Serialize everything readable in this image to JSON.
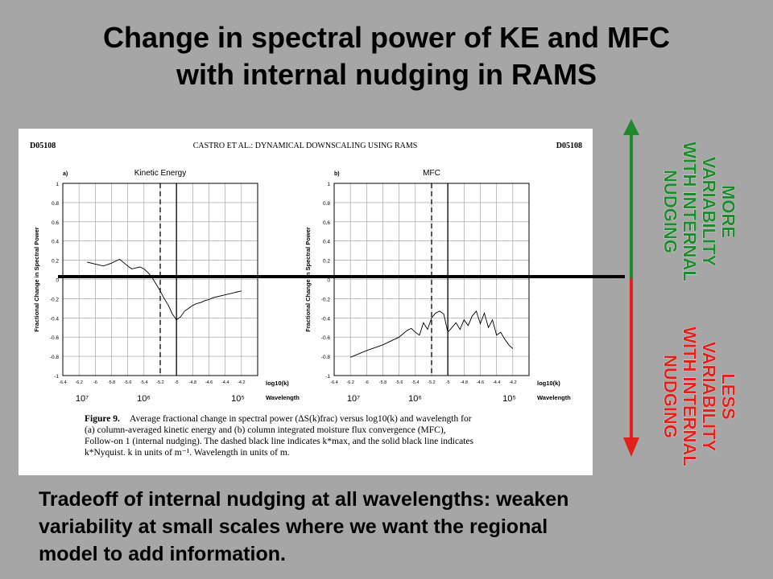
{
  "slide": {
    "title_line1": "Change in spectral power of KE and MFC",
    "title_line2": "with internal nudging in RAMS",
    "bottom_line1": "Tradeoff of internal nudging at all wavelengths:  weaken",
    "bottom_line2": "variability at small scales where we want the regional",
    "bottom_line3": "model to add information.",
    "more_line1": "MORE",
    "more_line2": "VARIABILITY",
    "more_line3": "WITH INTERNAL",
    "more_line4": "NUDGING",
    "less_line1": "LESS",
    "less_line2": "VARIABILITY",
    "less_line3": "WITH INTERNAL",
    "less_line4": "NUDGING",
    "colors": {
      "background": "#a6a6a6",
      "more": "#1e8a2d",
      "less": "#e0201b"
    }
  },
  "figure": {
    "header_left": "D05108",
    "header_center": "CASTRO ET AL.: DYNAMICAL DOWNSCALING USING RAMS",
    "header_right": "D05108",
    "caption_bold": "Figure 9.",
    "caption_line1": "Average fractional change in spectral power (ΔS(k)frac) versus log10(k) and wavelength for",
    "caption_line2": "(a) column-averaged kinetic energy and (b) column integrated moisture flux convergence (MFC),",
    "caption_line3": "Follow-on 1 (internal nudging). The dashed black line indicates k*max, and the solid black line indicates",
    "caption_line4": "k*Nyquist.  k in units of m⁻¹. Wavelength in units of m."
  },
  "chart_data": [
    {
      "type": "line",
      "panel": "a)",
      "title": "Kinetic Energy",
      "ylabel": "Fractional Change in Spectral Power",
      "xlabel": "log10(k)",
      "wavelength_label": "Wavelength",
      "xlim": [
        -6.4,
        -4.0
      ],
      "ylim": [
        -1,
        1
      ],
      "xticks": [
        "-6.4",
        "-6.2",
        "-6",
        "-5.8",
        "-5.6",
        "-5.4",
        "-5.2",
        "-5",
        "-4.8",
        "-4.6",
        "-4.4",
        "-4.2"
      ],
      "yticks": [
        "-1",
        "-0.8",
        "-0.6",
        "-0.4",
        "-0.2",
        "0",
        "0.2",
        "0.4",
        "0.6",
        "0.8",
        "1"
      ],
      "wavelength_ticks": [
        {
          "x": -7,
          "label": "10⁷"
        },
        {
          "x": -6,
          "label": "10⁶"
        },
        {
          "x": -5,
          "label": "10⁵"
        }
      ],
      "dashed_line_x": -5.2,
      "solid_line_x": -5.0,
      "x": [
        -6.1,
        -5.9,
        -5.8,
        -5.7,
        -5.6,
        -5.55,
        -5.5,
        -5.45,
        -5.4,
        -5.35,
        -5.3,
        -5.25,
        -5.2,
        -5.15,
        -5.1,
        -5.05,
        -5.0,
        -4.95,
        -4.9,
        -4.85,
        -4.8,
        -4.75,
        -4.7,
        -4.65,
        -4.6,
        -4.55,
        -4.5,
        -4.45,
        -4.4,
        -4.35,
        -4.3,
        -4.25,
        -4.2
      ],
      "y": [
        0.18,
        0.14,
        0.17,
        0.21,
        0.14,
        0.11,
        0.12,
        0.13,
        0.11,
        0.07,
        0.02,
        -0.05,
        -0.12,
        -0.2,
        -0.27,
        -0.36,
        -0.42,
        -0.39,
        -0.33,
        -0.3,
        -0.27,
        -0.25,
        -0.24,
        -0.22,
        -0.21,
        -0.19,
        -0.18,
        -0.17,
        -0.16,
        -0.15,
        -0.14,
        -0.13,
        -0.12
      ]
    },
    {
      "type": "line",
      "panel": "b)",
      "title": "MFC",
      "ylabel": "Fractional Change in Spectral Power",
      "xlabel": "log10(k)",
      "wavelength_label": "Wavelength",
      "xlim": [
        -6.4,
        -4.0
      ],
      "ylim": [
        -1,
        1
      ],
      "xticks": [
        "-6.4",
        "-6.2",
        "-6",
        "-5.8",
        "-5.6",
        "-5.4",
        "-5.2",
        "-5",
        "-4.8",
        "-4.6",
        "-4.4",
        "-4.2"
      ],
      "yticks": [
        "-1",
        "-0.8",
        "-0.6",
        "-0.4",
        "-0.2",
        "0",
        "0.2",
        "0.4",
        "0.6",
        "0.8",
        "1"
      ],
      "wavelength_ticks": [
        {
          "x": -7,
          "label": "10⁷"
        },
        {
          "x": -6,
          "label": "10⁶"
        },
        {
          "x": -5,
          "label": "10⁵"
        }
      ],
      "dashed_line_x": -5.2,
      "solid_line_x": -5.0,
      "x": [
        -6.2,
        -6.0,
        -5.8,
        -5.6,
        -5.5,
        -5.45,
        -5.4,
        -5.35,
        -5.3,
        -5.25,
        -5.2,
        -5.15,
        -5.1,
        -5.05,
        -5.0,
        -4.95,
        -4.9,
        -4.85,
        -4.8,
        -4.75,
        -4.7,
        -4.65,
        -4.6,
        -4.55,
        -4.5,
        -4.45,
        -4.4,
        -4.35,
        -4.3,
        -4.25,
        -4.2
      ],
      "y": [
        -0.81,
        -0.74,
        -0.68,
        -0.6,
        -0.53,
        -0.51,
        -0.55,
        -0.58,
        -0.45,
        -0.52,
        -0.4,
        -0.35,
        -0.33,
        -0.36,
        -0.55,
        -0.5,
        -0.45,
        -0.52,
        -0.42,
        -0.48,
        -0.38,
        -0.33,
        -0.46,
        -0.35,
        -0.5,
        -0.42,
        -0.58,
        -0.55,
        -0.62,
        -0.68,
        -0.72
      ]
    }
  ]
}
